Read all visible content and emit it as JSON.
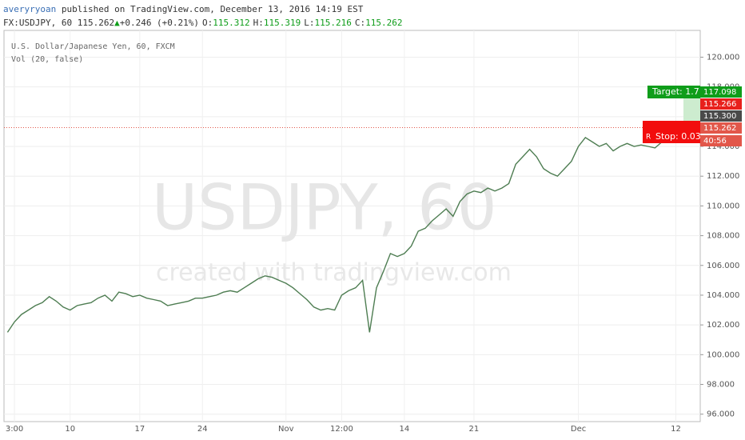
{
  "header": {
    "author": "averyryoan",
    "published": "published on TradingView.com, December 13, 2016 14:19 EST",
    "symbol": "FX:USDJPY, 60",
    "last": "115.262",
    "arrow": "▲",
    "change": "+0.246 (+0.21%)",
    "ohlc": [
      {
        "key": "O:",
        "value": "115.312"
      },
      {
        "key": "H:",
        "value": "115.319"
      },
      {
        "key": "L:",
        "value": "115.216"
      },
      {
        "key": "C:",
        "value": "115.262"
      }
    ]
  },
  "chart_data": {
    "type": "line",
    "pane_title": "U.S. Dollar/Japanese Yen, 60, FXCM",
    "volume_label": "Vol (20, false)",
    "watermark": "USDJPY, 60",
    "watermark_sub": "created with tradingview.com",
    "color": "#4e7d52",
    "grid": true,
    "categories": [
      null,
      "3:00",
      null,
      null,
      null,
      null,
      null,
      null,
      null,
      "10",
      null,
      null,
      null,
      null,
      null,
      null,
      null,
      null,
      null,
      "17",
      null,
      null,
      null,
      null,
      null,
      null,
      null,
      null,
      "24",
      null,
      null,
      null,
      null,
      null,
      null,
      null,
      null,
      null,
      null,
      null,
      "Nov",
      null,
      null,
      null,
      null,
      null,
      null,
      null,
      "12:00",
      null,
      null,
      null,
      null,
      null,
      null,
      null,
      null,
      "14",
      null,
      null,
      null,
      null,
      null,
      null,
      null,
      null,
      null,
      "21",
      null,
      null,
      null,
      null,
      null,
      null,
      null,
      null,
      null,
      null,
      null,
      null,
      null,
      null,
      "Dec",
      null,
      null,
      null,
      null,
      null,
      null,
      null,
      null,
      null,
      null,
      null,
      null,
      null,
      "12",
      null,
      null,
      null
    ],
    "values": [
      101.5,
      102.2,
      102.7,
      103.0,
      103.3,
      103.5,
      103.9,
      103.6,
      103.2,
      103.0,
      103.3,
      103.4,
      103.5,
      103.8,
      104.0,
      103.6,
      104.2,
      104.1,
      103.9,
      104.0,
      103.8,
      103.7,
      103.6,
      103.3,
      103.4,
      103.5,
      103.6,
      103.8,
      103.8,
      103.9,
      104.0,
      104.2,
      104.3,
      104.2,
      104.5,
      104.8,
      105.1,
      105.3,
      105.2,
      105.0,
      104.8,
      104.5,
      104.1,
      103.7,
      103.2,
      103.0,
      103.1,
      103.0,
      104.0,
      104.3,
      104.5,
      105.0,
      101.5,
      104.5,
      105.6,
      106.8,
      106.6,
      106.8,
      107.3,
      108.3,
      108.5,
      109.0,
      109.4,
      109.8,
      109.3,
      110.3,
      110.8,
      111.0,
      110.9,
      111.2,
      111.0,
      111.2,
      111.5,
      112.8,
      113.3,
      113.8,
      113.3,
      112.5,
      112.2,
      112.0,
      112.5,
      113.0,
      114.0,
      114.6,
      114.3,
      114.0,
      114.2,
      113.7,
      114.0,
      114.2,
      114.0,
      114.1,
      114.0,
      113.9,
      114.3,
      114.6,
      114.8,
      115.3,
      115.1,
      115.262
    ],
    "ylim": [
      95.5,
      121.8
    ],
    "yticks": [
      {
        "value": 96,
        "label": "96.000"
      },
      {
        "value": 98,
        "label": "98.000"
      },
      {
        "value": 100,
        "label": "100.000"
      },
      {
        "value": 102,
        "label": "102.000"
      },
      {
        "value": 104,
        "label": "104.000"
      },
      {
        "value": 106,
        "label": "106.000"
      },
      {
        "value": 108,
        "label": "108.000"
      },
      {
        "value": 110,
        "label": "110.000"
      },
      {
        "value": 112,
        "label": "112.000"
      },
      {
        "value": 114,
        "label": "114.000"
      },
      {
        "value": 116,
        "label": "116.000"
      },
      {
        "value": 118,
        "label": "118.000"
      },
      {
        "value": 120,
        "label": "120.000"
      }
    ],
    "badges": [
      {
        "label": "117.098",
        "color": "#0f9d1a"
      },
      {
        "label": "115.266",
        "color": "#e8201c"
      },
      {
        "label": "115.300",
        "color": "#4a4a4a"
      },
      {
        "label": "115.262",
        "color": "#e2574a"
      },
      {
        "label": "40:56",
        "color": "#e2574a"
      }
    ],
    "target_label": "Target: 1.7",
    "stop_label": "Stop: 0.03",
    "stop_marker": "R"
  }
}
